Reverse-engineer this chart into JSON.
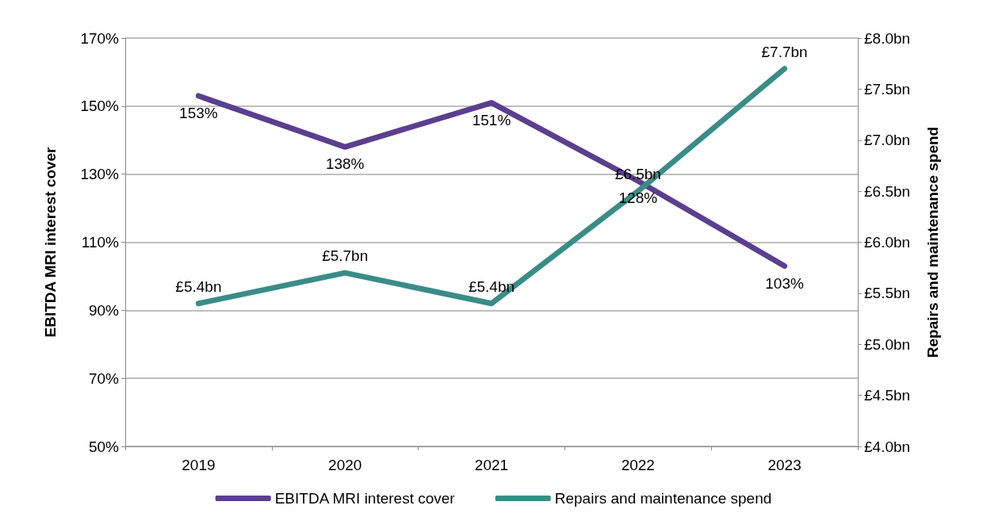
{
  "chart_data": {
    "type": "line",
    "categories": [
      "2019",
      "2020",
      "2021",
      "2022",
      "2023"
    ],
    "ylabel": "EBITDA MRI interest cover",
    "y2label": "Repairs and maintenance spend",
    "series": [
      {
        "name": "EBITDA MRI interest cover",
        "color": "#5a3f8e",
        "values": [
          153,
          138,
          151,
          128,
          103
        ],
        "value_labels": [
          "153%",
          "138%",
          "151%",
          "128%",
          "103%"
        ]
      },
      {
        "name": "Repairs and maintenance spend",
        "color": "#3a8c87",
        "axis": "y2",
        "values": [
          5.4,
          5.7,
          5.4,
          6.5,
          7.7
        ],
        "value_labels": [
          "£5.4bn",
          "£5.7bn",
          "£5.4bn",
          "£6.5bn",
          "£7.7bn"
        ]
      }
    ],
    "ylim": [
      50,
      170
    ],
    "yticks": [
      {
        "value": 50,
        "label": "50%"
      },
      {
        "value": 70,
        "label": "70%"
      },
      {
        "value": 90,
        "label": "90%"
      },
      {
        "value": 110,
        "label": "110%"
      },
      {
        "value": 130,
        "label": "130%"
      },
      {
        "value": 150,
        "label": "150%"
      },
      {
        "value": 170,
        "label": "170%"
      }
    ],
    "y2lim": [
      4,
      8
    ],
    "y2ticks": [
      {
        "value": 4,
        "label": "£4.0bn"
      },
      {
        "value": 4.5,
        "label": "£4.5bn"
      },
      {
        "value": 5,
        "label": "£5.0bn"
      },
      {
        "value": 5.5,
        "label": "£5.5bn"
      },
      {
        "value": 6,
        "label": "£6.0bn"
      },
      {
        "value": 6.5,
        "label": "£6.5bn"
      },
      {
        "value": 7,
        "label": "£7.0bn"
      },
      {
        "value": 7.5,
        "label": "£7.5bn"
      },
      {
        "value": 8,
        "label": "£8.0bn"
      }
    ],
    "grid": "y",
    "legend": "bottom",
    "marker": "none",
    "line_style": "solid"
  }
}
